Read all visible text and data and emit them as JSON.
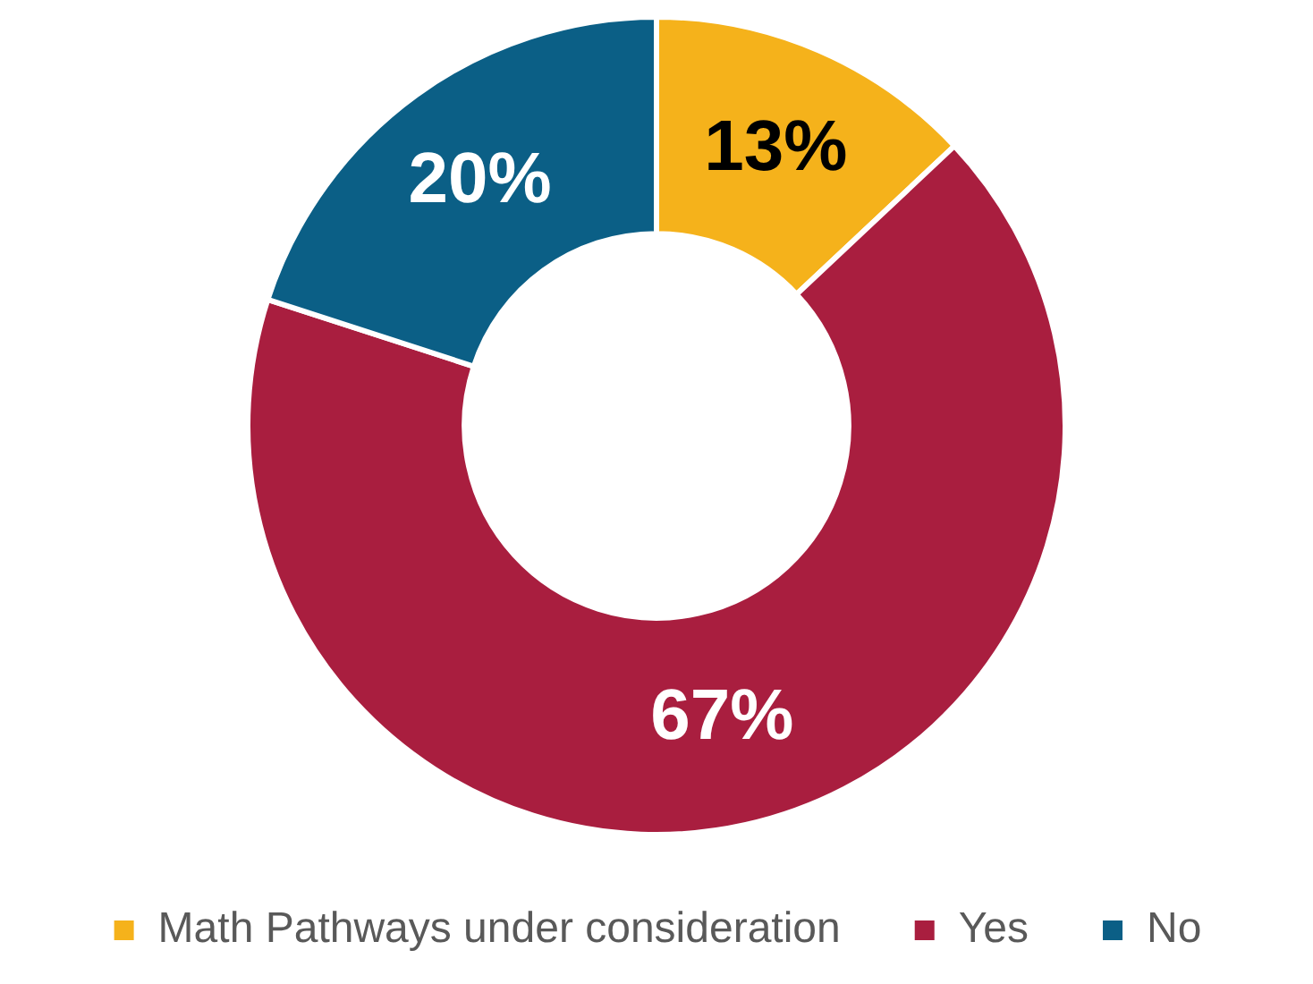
{
  "chart_data": {
    "type": "donut",
    "categories": [
      "Math Pathways under consideration",
      "Yes",
      "No"
    ],
    "values": [
      13,
      67,
      20
    ],
    "colors": [
      "#f5b21b",
      "#a91e3f",
      "#0b5f86"
    ],
    "value_labels": [
      "13%",
      "67%",
      "20%"
    ],
    "legend": "bottom"
  }
}
